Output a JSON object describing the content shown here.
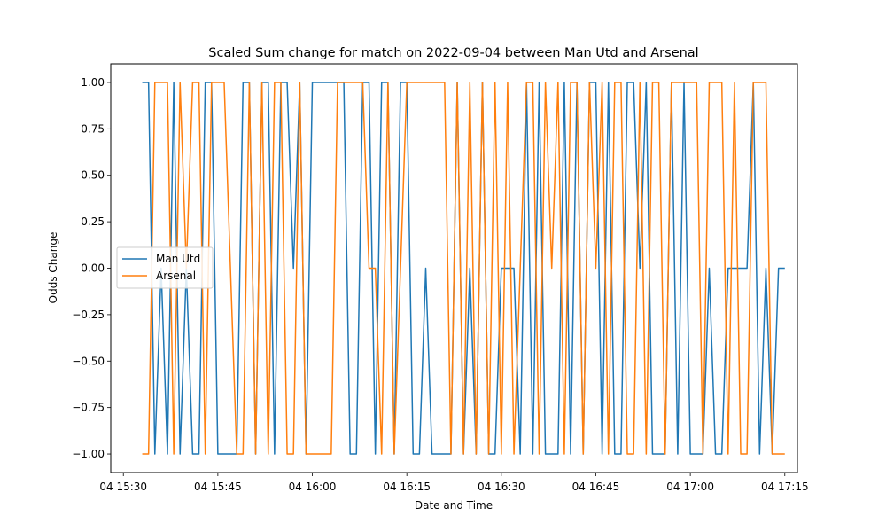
{
  "chart_data": {
    "type": "line",
    "title": "Scaled Sum change for match on 2022-09-04 between Man Utd and Arsenal",
    "xlabel": "Date and Time",
    "ylabel": "Odds Change",
    "xlim": [
      "2022-09-04 15:28:00",
      "2022-09-04 17:17:00"
    ],
    "ylim": [
      -1.1,
      1.1
    ],
    "x_ticks": [
      {
        "time": "2022-09-04 15:30",
        "label": "04 15:30"
      },
      {
        "time": "2022-09-04 15:45",
        "label": "04 15:45"
      },
      {
        "time": "2022-09-04 16:00",
        "label": "04 16:00"
      },
      {
        "time": "2022-09-04 16:15",
        "label": "04 16:15"
      },
      {
        "time": "2022-09-04 16:30",
        "label": "04 16:30"
      },
      {
        "time": "2022-09-04 16:45",
        "label": "04 16:45"
      },
      {
        "time": "2022-09-04 17:00",
        "label": "04 17:00"
      },
      {
        "time": "2022-09-04 17:15",
        "label": "04 17:15"
      }
    ],
    "y_ticks": [
      {
        "value": 1.0,
        "label": "1.00"
      },
      {
        "value": 0.75,
        "label": "0.75"
      },
      {
        "value": 0.5,
        "label": "0.50"
      },
      {
        "value": 0.25,
        "label": "0.25"
      },
      {
        "value": 0.0,
        "label": "0.00"
      },
      {
        "value": -0.25,
        "label": "−0.25"
      },
      {
        "value": -0.5,
        "label": "−0.50"
      },
      {
        "value": -0.75,
        "label": "−0.75"
      },
      {
        "value": -1.0,
        "label": "−1.00"
      }
    ],
    "grid": false,
    "legend_position": "center-left",
    "series": [
      {
        "name": "Man Utd",
        "color": "#1f77b4",
        "points": [
          [
            "2022-09-04 15:33:00",
            1
          ],
          [
            "2022-09-04 15:34:00",
            1
          ],
          [
            "2022-09-04 15:35:00",
            -1
          ],
          [
            "2022-09-04 15:36:00",
            0
          ],
          [
            "2022-09-04 15:37:00",
            -1
          ],
          [
            "2022-09-04 15:38:00",
            1
          ],
          [
            "2022-09-04 15:39:00",
            -1
          ],
          [
            "2022-09-04 15:40:00",
            0
          ],
          [
            "2022-09-04 15:41:00",
            -1
          ],
          [
            "2022-09-04 15:42:00",
            -1
          ],
          [
            "2022-09-04 15:43:00",
            1
          ],
          [
            "2022-09-04 15:44:00",
            1
          ],
          [
            "2022-09-04 15:45:00",
            -1
          ],
          [
            "2022-09-04 15:46:00",
            -1
          ],
          [
            "2022-09-04 15:47:00",
            -1
          ],
          [
            "2022-09-04 15:48:00",
            -1
          ],
          [
            "2022-09-04 15:49:00",
            1
          ],
          [
            "2022-09-04 15:50:00",
            1
          ],
          [
            "2022-09-04 15:51:00",
            -1
          ],
          [
            "2022-09-04 15:52:00",
            1
          ],
          [
            "2022-09-04 15:53:00",
            1
          ],
          [
            "2022-09-04 15:54:00",
            -1
          ],
          [
            "2022-09-04 15:55:00",
            1
          ],
          [
            "2022-09-04 15:56:00",
            1
          ],
          [
            "2022-09-04 15:57:00",
            0
          ],
          [
            "2022-09-04 15:58:00",
            1
          ],
          [
            "2022-09-04 15:59:00",
            -1
          ],
          [
            "2022-09-04 16:00:00",
            1
          ],
          [
            "2022-09-04 16:01:00",
            1
          ],
          [
            "2022-09-04 16:02:00",
            1
          ],
          [
            "2022-09-04 16:03:00",
            1
          ],
          [
            "2022-09-04 16:04:00",
            1
          ],
          [
            "2022-09-04 16:05:00",
            1
          ],
          [
            "2022-09-04 16:06:00",
            -1
          ],
          [
            "2022-09-04 16:07:00",
            -1
          ],
          [
            "2022-09-04 16:08:00",
            1
          ],
          [
            "2022-09-04 16:09:00",
            1
          ],
          [
            "2022-09-04 16:10:00",
            -1
          ],
          [
            "2022-09-04 16:11:00",
            1
          ],
          [
            "2022-09-04 16:12:00",
            1
          ],
          [
            "2022-09-04 16:13:00",
            -1
          ],
          [
            "2022-09-04 16:14:00",
            1
          ],
          [
            "2022-09-04 16:15:00",
            1
          ],
          [
            "2022-09-04 16:16:00",
            -1
          ],
          [
            "2022-09-04 16:17:00",
            -1
          ],
          [
            "2022-09-04 16:18:00",
            0
          ],
          [
            "2022-09-04 16:19:00",
            -1
          ],
          [
            "2022-09-04 16:20:00",
            -1
          ],
          [
            "2022-09-04 16:21:00",
            -1
          ],
          [
            "2022-09-04 16:22:00",
            -1
          ],
          [
            "2022-09-04 16:23:00",
            1
          ],
          [
            "2022-09-04 16:24:00",
            -1
          ],
          [
            "2022-09-04 16:25:00",
            0
          ],
          [
            "2022-09-04 16:26:00",
            -1
          ],
          [
            "2022-09-04 16:27:00",
            1
          ],
          [
            "2022-09-04 16:28:00",
            -1
          ],
          [
            "2022-09-04 16:29:00",
            -1
          ],
          [
            "2022-09-04 16:30:00",
            0
          ],
          [
            "2022-09-04 16:31:00",
            0
          ],
          [
            "2022-09-04 16:32:00",
            0
          ],
          [
            "2022-09-04 16:33:00",
            -1
          ],
          [
            "2022-09-04 16:34:00",
            1
          ],
          [
            "2022-09-04 16:35:00",
            -1
          ],
          [
            "2022-09-04 16:36:00",
            1
          ],
          [
            "2022-09-04 16:37:00",
            -1
          ],
          [
            "2022-09-04 16:38:00",
            -1
          ],
          [
            "2022-09-04 16:39:00",
            -1
          ],
          [
            "2022-09-04 16:40:00",
            1
          ],
          [
            "2022-09-04 16:41:00",
            -1
          ],
          [
            "2022-09-04 16:42:00",
            1
          ],
          [
            "2022-09-04 16:43:00",
            -1
          ],
          [
            "2022-09-04 16:44:00",
            1
          ],
          [
            "2022-09-04 16:45:00",
            1
          ],
          [
            "2022-09-04 16:46:00",
            -1
          ],
          [
            "2022-09-04 16:47:00",
            1
          ],
          [
            "2022-09-04 16:48:00",
            -1
          ],
          [
            "2022-09-04 16:49:00",
            -1
          ],
          [
            "2022-09-04 16:50:00",
            1
          ],
          [
            "2022-09-04 16:51:00",
            1
          ],
          [
            "2022-09-04 16:52:00",
            0
          ],
          [
            "2022-09-04 16:53:00",
            1
          ],
          [
            "2022-09-04 16:54:00",
            -1
          ],
          [
            "2022-09-04 16:55:00",
            -1
          ],
          [
            "2022-09-04 16:56:00",
            -1
          ],
          [
            "2022-09-04 16:57:00",
            1
          ],
          [
            "2022-09-04 16:58:00",
            -1
          ],
          [
            "2022-09-04 16:59:00",
            1
          ],
          [
            "2022-09-04 17:00:00",
            -1
          ],
          [
            "2022-09-04 17:01:00",
            -1
          ],
          [
            "2022-09-04 17:02:00",
            -1
          ],
          [
            "2022-09-04 17:03:00",
            0
          ],
          [
            "2022-09-04 17:04:00",
            -1
          ],
          [
            "2022-09-04 17:05:00",
            -1
          ],
          [
            "2022-09-04 17:06:00",
            0
          ],
          [
            "2022-09-04 17:07:00",
            0
          ],
          [
            "2022-09-04 17:08:00",
            0
          ],
          [
            "2022-09-04 17:09:00",
            0
          ],
          [
            "2022-09-04 17:10:00",
            1
          ],
          [
            "2022-09-04 17:11:00",
            -1
          ],
          [
            "2022-09-04 17:12:00",
            0
          ],
          [
            "2022-09-04 17:13:00",
            -1
          ],
          [
            "2022-09-04 17:14:00",
            0
          ],
          [
            "2022-09-04 17:15:00",
            0
          ]
        ]
      },
      {
        "name": "Arsenal",
        "color": "#ff7f0e",
        "points": [
          [
            "2022-09-04 15:33:00",
            -1
          ],
          [
            "2022-09-04 15:34:00",
            -1
          ],
          [
            "2022-09-04 15:35:00",
            1
          ],
          [
            "2022-09-04 15:36:00",
            1
          ],
          [
            "2022-09-04 15:37:00",
            1
          ],
          [
            "2022-09-04 15:38:00",
            -1
          ],
          [
            "2022-09-04 15:39:00",
            1
          ],
          [
            "2022-09-04 15:40:00",
            0
          ],
          [
            "2022-09-04 15:41:00",
            1
          ],
          [
            "2022-09-04 15:42:00",
            1
          ],
          [
            "2022-09-04 15:43:00",
            -1
          ],
          [
            "2022-09-04 15:44:00",
            1
          ],
          [
            "2022-09-04 15:45:00",
            1
          ],
          [
            "2022-09-04 15:46:00",
            1
          ],
          [
            "2022-09-04 15:47:00",
            0
          ],
          [
            "2022-09-04 15:48:00",
            -1
          ],
          [
            "2022-09-04 15:49:00",
            -1
          ],
          [
            "2022-09-04 15:50:00",
            1
          ],
          [
            "2022-09-04 15:51:00",
            -1
          ],
          [
            "2022-09-04 15:52:00",
            1
          ],
          [
            "2022-09-04 15:53:00",
            -1
          ],
          [
            "2022-09-04 15:54:00",
            1
          ],
          [
            "2022-09-04 15:55:00",
            1
          ],
          [
            "2022-09-04 15:56:00",
            -1
          ],
          [
            "2022-09-04 15:57:00",
            -1
          ],
          [
            "2022-09-04 15:58:00",
            1
          ],
          [
            "2022-09-04 15:59:00",
            -1
          ],
          [
            "2022-09-04 16:00:00",
            -1
          ],
          [
            "2022-09-04 16:01:00",
            -1
          ],
          [
            "2022-09-04 16:02:00",
            -1
          ],
          [
            "2022-09-04 16:03:00",
            -1
          ],
          [
            "2022-09-04 16:04:00",
            1
          ],
          [
            "2022-09-04 16:05:00",
            1
          ],
          [
            "2022-09-04 16:06:00",
            1
          ],
          [
            "2022-09-04 16:07:00",
            1
          ],
          [
            "2022-09-04 16:08:00",
            1
          ],
          [
            "2022-09-04 16:09:00",
            0
          ],
          [
            "2022-09-04 16:10:00",
            0
          ],
          [
            "2022-09-04 16:11:00",
            -1
          ],
          [
            "2022-09-04 16:12:00",
            1
          ],
          [
            "2022-09-04 16:13:00",
            -1
          ],
          [
            "2022-09-04 16:14:00",
            0
          ],
          [
            "2022-09-04 16:15:00",
            1
          ],
          [
            "2022-09-04 16:16:00",
            1
          ],
          [
            "2022-09-04 16:17:00",
            1
          ],
          [
            "2022-09-04 16:18:00",
            1
          ],
          [
            "2022-09-04 16:19:00",
            1
          ],
          [
            "2022-09-04 16:20:00",
            1
          ],
          [
            "2022-09-04 16:21:00",
            1
          ],
          [
            "2022-09-04 16:22:00",
            -1
          ],
          [
            "2022-09-04 16:23:00",
            1
          ],
          [
            "2022-09-04 16:24:00",
            -1
          ],
          [
            "2022-09-04 16:25:00",
            1
          ],
          [
            "2022-09-04 16:26:00",
            -1
          ],
          [
            "2022-09-04 16:27:00",
            1
          ],
          [
            "2022-09-04 16:28:00",
            -1
          ],
          [
            "2022-09-04 16:29:00",
            1
          ],
          [
            "2022-09-04 16:30:00",
            -1
          ],
          [
            "2022-09-04 16:31:00",
            1
          ],
          [
            "2022-09-04 16:32:00",
            -1
          ],
          [
            "2022-09-04 16:33:00",
            0
          ],
          [
            "2022-09-04 16:34:00",
            1
          ],
          [
            "2022-09-04 16:35:00",
            1
          ],
          [
            "2022-09-04 16:36:00",
            -1
          ],
          [
            "2022-09-04 16:37:00",
            1
          ],
          [
            "2022-09-04 16:38:00",
            0
          ],
          [
            "2022-09-04 16:39:00",
            1
          ],
          [
            "2022-09-04 16:40:00",
            -1
          ],
          [
            "2022-09-04 16:41:00",
            1
          ],
          [
            "2022-09-04 16:42:00",
            1
          ],
          [
            "2022-09-04 16:43:00",
            -1
          ],
          [
            "2022-09-04 16:44:00",
            1
          ],
          [
            "2022-09-04 16:45:00",
            0
          ],
          [
            "2022-09-04 16:46:00",
            1
          ],
          [
            "2022-09-04 16:47:00",
            -1
          ],
          [
            "2022-09-04 16:48:00",
            1
          ],
          [
            "2022-09-04 16:49:00",
            1
          ],
          [
            "2022-09-04 16:50:00",
            -1
          ],
          [
            "2022-09-04 16:51:00",
            -1
          ],
          [
            "2022-09-04 16:52:00",
            1
          ],
          [
            "2022-09-04 16:53:00",
            -1
          ],
          [
            "2022-09-04 16:54:00",
            1
          ],
          [
            "2022-09-04 16:55:00",
            1
          ],
          [
            "2022-09-04 16:56:00",
            -1
          ],
          [
            "2022-09-04 16:57:00",
            1
          ],
          [
            "2022-09-04 16:58:00",
            1
          ],
          [
            "2022-09-04 16:59:00",
            1
          ],
          [
            "2022-09-04 17:00:00",
            1
          ],
          [
            "2022-09-04 17:01:00",
            1
          ],
          [
            "2022-09-04 17:02:00",
            -1
          ],
          [
            "2022-09-04 17:03:00",
            1
          ],
          [
            "2022-09-04 17:04:00",
            1
          ],
          [
            "2022-09-04 17:05:00",
            1
          ],
          [
            "2022-09-04 17:06:00",
            -1
          ],
          [
            "2022-09-04 17:07:00",
            1
          ],
          [
            "2022-09-04 17:08:00",
            -1
          ],
          [
            "2022-09-04 17:09:00",
            -1
          ],
          [
            "2022-09-04 17:10:00",
            1
          ],
          [
            "2022-09-04 17:11:00",
            1
          ],
          [
            "2022-09-04 17:12:00",
            1
          ],
          [
            "2022-09-04 17:13:00",
            -1
          ],
          [
            "2022-09-04 17:14:00",
            -1
          ],
          [
            "2022-09-04 17:15:00",
            -1
          ]
        ]
      }
    ]
  }
}
